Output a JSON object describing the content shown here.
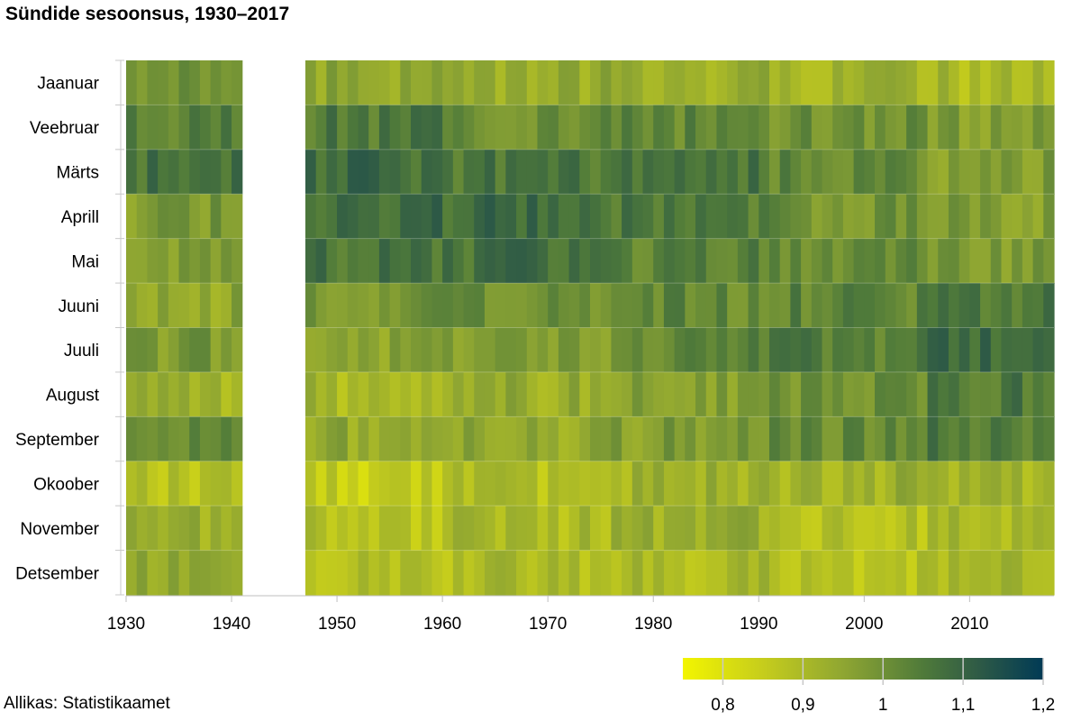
{
  "chart_data": {
    "type": "heatmap",
    "title": "Sündide sesoonsus, 1930–2017",
    "source": "Allikas: Statistikaamet",
    "rows": [
      "Jaanuar",
      "Veebruar",
      "Märts",
      "Aprill",
      "Mai",
      "Juuni",
      "Juuli",
      "August",
      "September",
      "Okoober",
      "November",
      "Detsember"
    ],
    "x_range": [
      1930,
      2017
    ],
    "x_ticks": [
      "1930",
      "1940",
      "1950",
      "1960",
      "1970",
      "1980",
      "1990",
      "2000",
      "2010"
    ],
    "missing_years": [
      1941,
      1942,
      1943,
      1944,
      1945,
      1946
    ],
    "value_range": [
      0.75,
      1.2
    ],
    "colorscale": [
      [
        0.75,
        "#f3f500"
      ],
      [
        0.85,
        "#c6cd1c"
      ],
      [
        0.95,
        "#8fa632"
      ],
      [
        1.05,
        "#4f7a3a"
      ],
      [
        1.12,
        "#2e5a46"
      ],
      [
        1.2,
        "#003a55"
      ]
    ],
    "legend": {
      "ticks": [
        "0,8",
        "0,9",
        "1",
        "1,1",
        "1,2"
      ],
      "tick_values": [
        0.8,
        0.9,
        1.0,
        1.1,
        1.2
      ],
      "placement": "bottom-right"
    },
    "monthly_values_by_period": {
      "periods": [
        "1930–1940",
        "1947–1960",
        "1961–1975",
        "1976–1990",
        "1991–2005",
        "2006–2017"
      ],
      "Jaanuar": [
        0.99,
        0.95,
        0.93,
        0.93,
        0.92,
        0.9
      ],
      "Veebruar": [
        1.03,
        1.05,
        1.01,
        1.02,
        1.0,
        0.97
      ],
      "Märts": [
        1.07,
        1.08,
        1.06,
        1.06,
        1.02,
        0.97
      ],
      "Aprill": [
        0.98,
        1.08,
        1.09,
        1.05,
        1.0,
        0.97
      ],
      "Mai": [
        0.96,
        1.06,
        1.07,
        1.03,
        1.02,
        0.98
      ],
      "Juuni": [
        0.95,
        1.0,
        1.0,
        1.02,
        1.03,
        1.06
      ],
      "Juuli": [
        0.98,
        0.96,
        0.98,
        1.02,
        1.04,
        1.08
      ],
      "August": [
        0.92,
        0.91,
        0.93,
        0.96,
        1.0,
        1.05
      ],
      "September": [
        1.02,
        0.94,
        0.94,
        0.97,
        1.01,
        1.05
      ],
      "Okoober": [
        0.88,
        0.85,
        0.88,
        0.92,
        0.92,
        0.92
      ],
      "November": [
        0.93,
        0.88,
        0.9,
        0.93,
        0.88,
        0.9
      ],
      "Detsember": [
        0.93,
        0.89,
        0.9,
        0.9,
        0.88,
        0.9
      ]
    }
  }
}
